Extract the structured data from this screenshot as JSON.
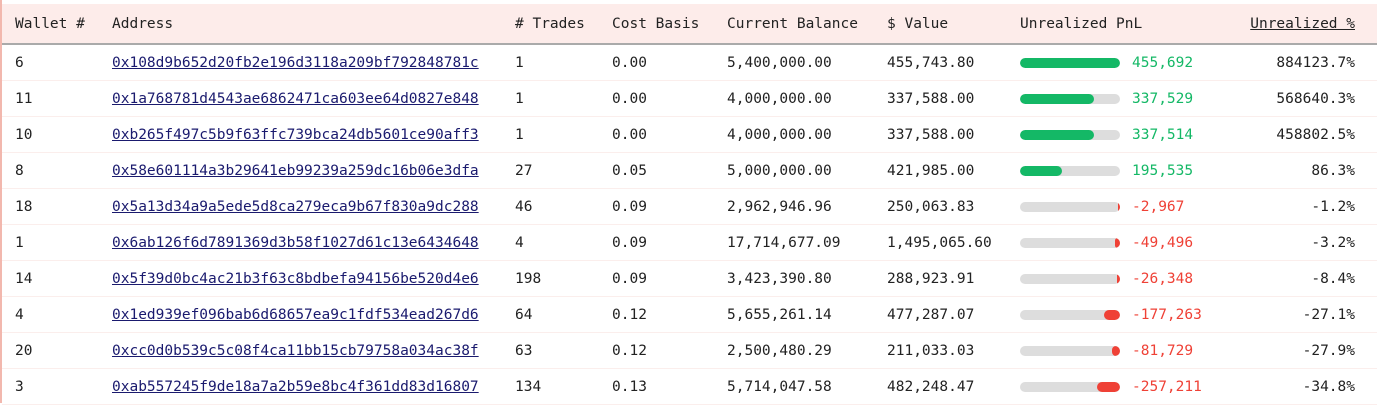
{
  "colors": {
    "positive": "#14b866",
    "negative": "#ef4136",
    "header_bg": "#fdecea",
    "bar_track": "#dddddd"
  },
  "headers": [
    "Wallet #",
    "Address",
    "# Trades",
    "Cost Basis",
    "Current Balance",
    "$ Value",
    "Unrealized PnL",
    "Unrealized %"
  ],
  "rows": [
    {
      "wallet": "6",
      "address": "0x108d9b652d20fb2e196d3118a209bf792848781c",
      "trades": "1",
      "cost": "0.00",
      "balance": "5,400,000.00",
      "value": "455,743.80",
      "pnl": "455,692",
      "pnl_fill": 1.0,
      "pct": "884123.7%",
      "sign": "pos"
    },
    {
      "wallet": "11",
      "address": "0x1a768781d4543ae6862471ca603ee64d0827e848",
      "trades": "1",
      "cost": "0.00",
      "balance": "4,000,000.00",
      "value": "337,588.00",
      "pnl": "337,529",
      "pnl_fill": 0.74,
      "pct": "568640.3%",
      "sign": "pos"
    },
    {
      "wallet": "10",
      "address": "0xb265f497c5b9f63ffc739bca24db5601ce90aff3",
      "trades": "1",
      "cost": "0.00",
      "balance": "4,000,000.00",
      "value": "337,588.00",
      "pnl": "337,514",
      "pnl_fill": 0.74,
      "pct": "458802.5%",
      "sign": "pos"
    },
    {
      "wallet": "8",
      "address": "0x58e601114a3b29641eb99239a259dc16b06e3dfa",
      "trades": "27",
      "cost": "0.05",
      "balance": "5,000,000.00",
      "value": "421,985.00",
      "pnl": "195,535",
      "pnl_fill": 0.42,
      "pct": "86.3%",
      "sign": "pos"
    },
    {
      "wallet": "18",
      "address": "0x5a13d34a9a5ede5d8ca279eca9b67f830a9dc288",
      "trades": "46",
      "cost": "0.09",
      "balance": "2,962,946.96",
      "value": "250,063.83",
      "pnl": "-2,967",
      "pnl_fill": 0.01,
      "pct": "-1.2%",
      "sign": "neg"
    },
    {
      "wallet": "1",
      "address": "0x6ab126f6d7891369d3b58f1027d61c13e6434648",
      "trades": "4",
      "cost": "0.09",
      "balance": "17,714,677.09",
      "value": "1,495,065.60",
      "pnl": "-49,496",
      "pnl_fill": 0.05,
      "pct": "-3.2%",
      "sign": "neg"
    },
    {
      "wallet": "14",
      "address": "0x5f39d0bc4ac21b3f63c8bdbefa94156be520d4e6",
      "trades": "198",
      "cost": "0.09",
      "balance": "3,423,390.80",
      "value": "288,923.91",
      "pnl": "-26,348",
      "pnl_fill": 0.03,
      "pct": "-8.4%",
      "sign": "neg"
    },
    {
      "wallet": "4",
      "address": "0x1ed939ef096bab6d68657ea9c1fdf534ead267d6",
      "trades": "64",
      "cost": "0.12",
      "balance": "5,655,261.14",
      "value": "477,287.07",
      "pnl": "-177,263",
      "pnl_fill": 0.16,
      "pct": "-27.1%",
      "sign": "neg"
    },
    {
      "wallet": "20",
      "address": "0xcc0d0b539c5c08f4ca11bb15cb79758a034ac38f",
      "trades": "63",
      "cost": "0.12",
      "balance": "2,500,480.29",
      "value": "211,033.03",
      "pnl": "-81,729",
      "pnl_fill": 0.08,
      "pct": "-27.9%",
      "sign": "neg"
    },
    {
      "wallet": "3",
      "address": "0xab557245f9de18a7a2b59e8bc4f361dd83d16807",
      "trades": "134",
      "cost": "0.13",
      "balance": "5,714,047.58",
      "value": "482,248.47",
      "pnl": "-257,211",
      "pnl_fill": 0.23,
      "pct": "-34.8%",
      "sign": "neg"
    }
  ]
}
